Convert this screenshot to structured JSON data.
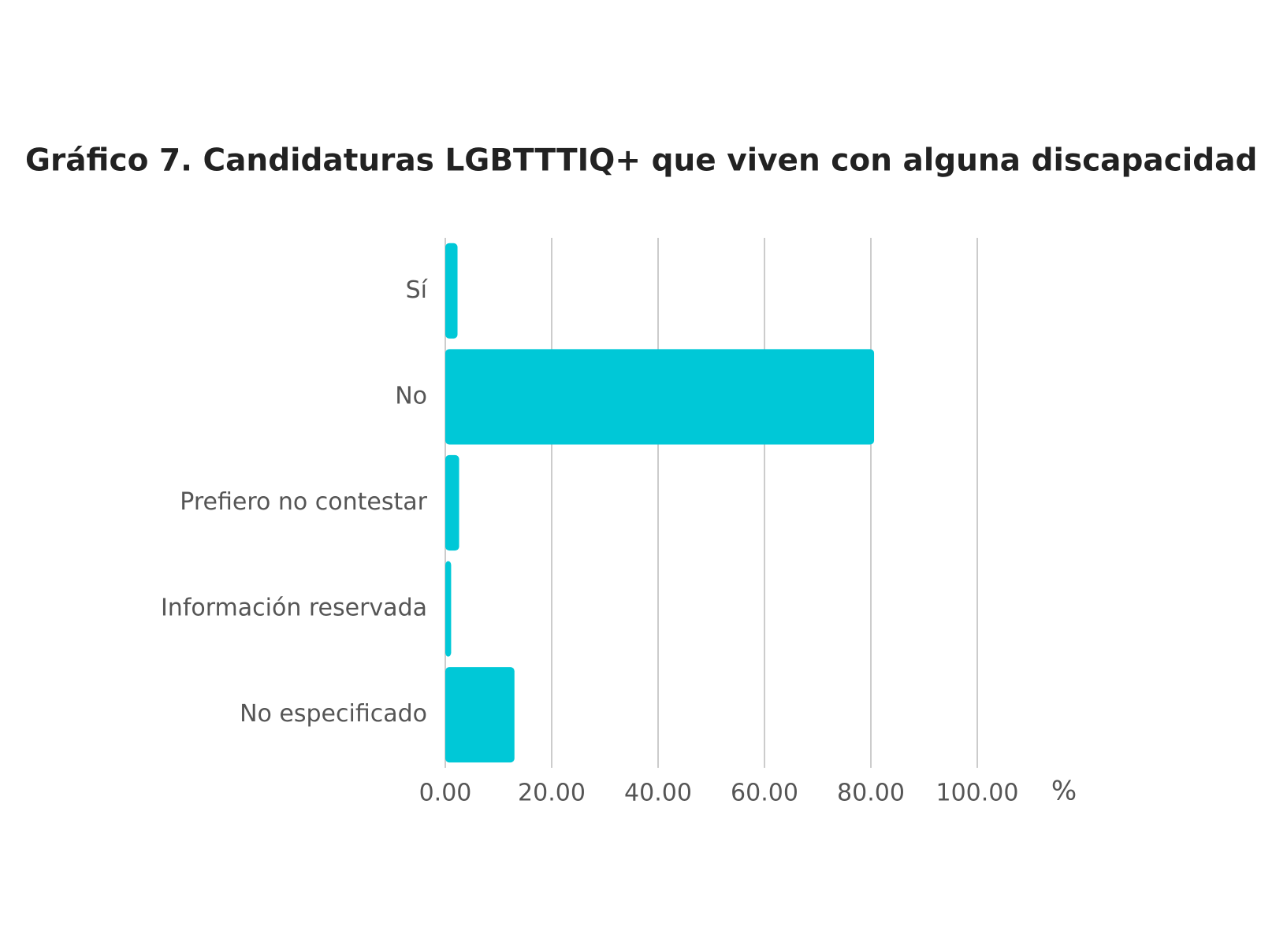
{
  "chart_data": {
    "type": "hbar",
    "title": "Gráfico 7. Candidaturas LGBTTTIQ+ que viven con alguna discapacidad",
    "categories": [
      "Sí",
      "No",
      "Prefiero no contestar",
      "Información reservada",
      "No especificado"
    ],
    "values": [
      2.3,
      80.6,
      2.6,
      1.1,
      13.0
    ],
    "color": "#00c8d7",
    "x_label": "%",
    "xlim": [
      0,
      100
    ],
    "xticks": [
      {
        "value": 0,
        "label": "0.00"
      },
      {
        "value": 20,
        "label": "20.00"
      },
      {
        "value": 40,
        "label": "40.00"
      },
      {
        "value": 60,
        "label": "60.00"
      },
      {
        "value": 80,
        "label": "80.00"
      },
      {
        "value": 100,
        "label": "100.00"
      }
    ],
    "grid": true
  }
}
